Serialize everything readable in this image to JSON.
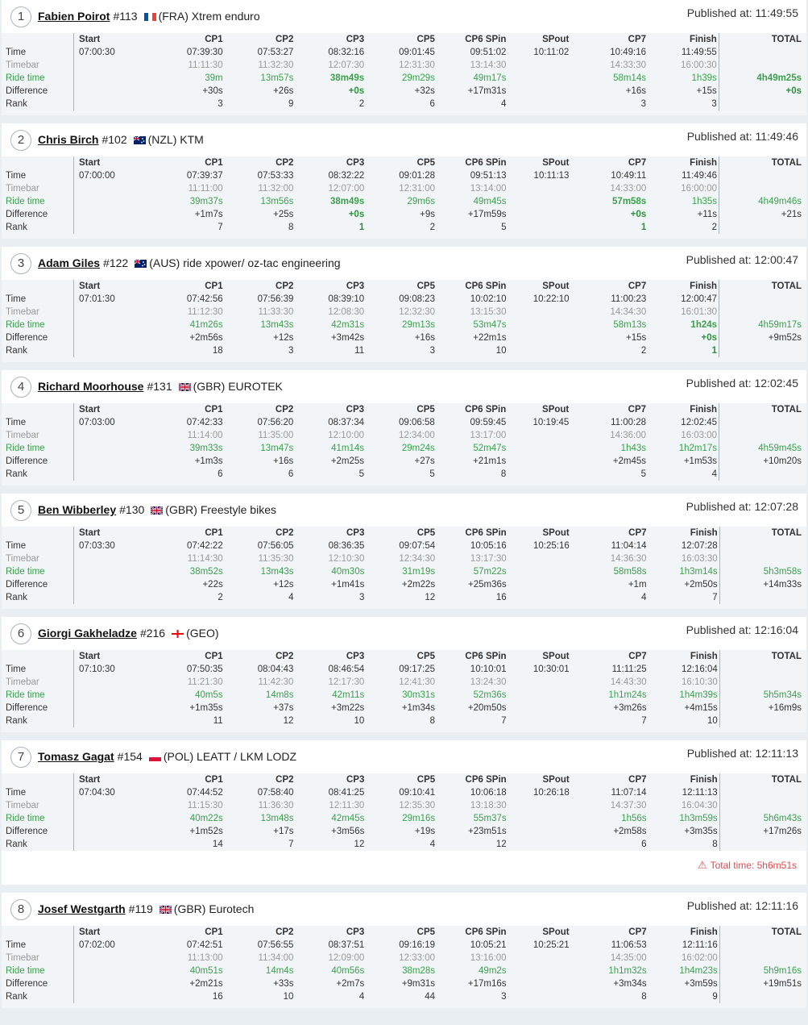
{
  "columns": [
    "Start",
    "CP1",
    "CP2",
    "CP3",
    "CP5",
    "CP6 SPin",
    "SPout",
    "CP7",
    "Finish",
    "TOTAL"
  ],
  "row_labels": [
    "Time",
    "Timebar",
    "Ride time",
    "Difference",
    "Rank"
  ],
  "published_prefix": "Published at: ",
  "riders": [
    {
      "pos": "1",
      "name": "Fabien Poirot",
      "number": "#113",
      "flag": "france-flag",
      "flag_colors": [
        "#0055a4",
        "#ffffff",
        "#ef4135"
      ],
      "country": "(FRA)",
      "team": "Xtrem enduro",
      "published": "11:49:55",
      "time": [
        "07:00:30",
        "07:39:30",
        "07:53:27",
        "08:32:16",
        "09:01:45",
        "09:51:02",
        "10:11:02",
        "10:49:16",
        "11:49:55",
        ""
      ],
      "timebar": [
        "",
        "11:11:30",
        "11:32:30",
        "12:07:30",
        "12:31:30",
        "13:14:30",
        "",
        "14:33:30",
        "16:00:30",
        ""
      ],
      "ride": [
        "",
        "39m",
        "13m57s",
        "38m49s",
        "29m29s",
        "49m17s",
        "",
        "58m14s",
        "1h39s",
        "4h49m25s"
      ],
      "diff": [
        "",
        "+30s",
        "+26s",
        "+0s",
        "+32s",
        "+17m31s",
        "",
        "+16s",
        "+15s",
        "+0s"
      ],
      "rank": [
        "",
        "3",
        "9",
        "2",
        "6",
        "4",
        "",
        "3",
        "3",
        ""
      ],
      "bold_ride": [
        3,
        9
      ],
      "bold_diff": [
        3,
        9
      ],
      "bold_rank": [],
      "warning": ""
    },
    {
      "pos": "2",
      "name": "Chris Birch",
      "number": "#102",
      "flag": "new-zealand-flag",
      "flag_colors": [
        "#012169",
        "#c8102e",
        "#ffffff"
      ],
      "country": "(NZL)",
      "team": "KTM",
      "published": "11:49:46",
      "time": [
        "07:00:00",
        "07:39:37",
        "07:53:33",
        "08:32:22",
        "09:01:28",
        "09:51:13",
        "10:11:13",
        "10:49:11",
        "11:49:46",
        ""
      ],
      "timebar": [
        "",
        "11:11:00",
        "11:32:00",
        "12:07:00",
        "12:31:00",
        "13:14:00",
        "",
        "14:33:00",
        "16:00:00",
        ""
      ],
      "ride": [
        "",
        "39m37s",
        "13m56s",
        "38m49s",
        "29m6s",
        "49m45s",
        "",
        "57m58s",
        "1h35s",
        "4h49m46s"
      ],
      "diff": [
        "",
        "+1m7s",
        "+25s",
        "+0s",
        "+9s",
        "+17m59s",
        "",
        "+0s",
        "+11s",
        "+21s"
      ],
      "rank": [
        "",
        "7",
        "8",
        "1",
        "2",
        "5",
        "",
        "1",
        "2",
        ""
      ],
      "bold_ride": [
        3,
        7
      ],
      "bold_diff": [
        3,
        7
      ],
      "bold_rank": [
        3,
        7
      ],
      "warning": ""
    },
    {
      "pos": "3",
      "name": "Adam Giles",
      "number": "#122",
      "flag": "australia-flag",
      "flag_colors": [
        "#012169",
        "#c8102e",
        "#ffffff"
      ],
      "country": "(AUS)",
      "team": "ride xpower/ oz-tac engineering",
      "published": "12:00:47",
      "time": [
        "07:01:30",
        "07:42:56",
        "07:56:39",
        "08:39:10",
        "09:08:23",
        "10:02:10",
        "10:22:10",
        "11:00:23",
        "12:00:47",
        ""
      ],
      "timebar": [
        "",
        "11:12:30",
        "11:33:30",
        "12:08:30",
        "12:32:30",
        "13:15:30",
        "",
        "14:34:30",
        "16:01:30",
        ""
      ],
      "ride": [
        "",
        "41m26s",
        "13m43s",
        "42m31s",
        "29m13s",
        "53m47s",
        "",
        "58m13s",
        "1h24s",
        "4h59m17s"
      ],
      "diff": [
        "",
        "+2m56s",
        "+12s",
        "+3m42s",
        "+16s",
        "+22m1s",
        "",
        "+15s",
        "+0s",
        "+9m52s"
      ],
      "rank": [
        "",
        "18",
        "3",
        "11",
        "3",
        "10",
        "",
        "2",
        "1",
        ""
      ],
      "bold_ride": [
        8
      ],
      "bold_diff": [
        8
      ],
      "bold_rank": [
        8
      ],
      "warning": ""
    },
    {
      "pos": "4",
      "name": "Richard Moorhouse",
      "number": "#131",
      "flag": "uk-flag",
      "flag_colors": [
        "#012169",
        "#c8102e",
        "#ffffff"
      ],
      "country": "(GBR)",
      "team": "EUROTEK",
      "published": "12:02:45",
      "time": [
        "07:03:00",
        "07:42:33",
        "07:56:20",
        "08:37:34",
        "09:06:58",
        "09:59:45",
        "10:19:45",
        "11:00:28",
        "12:02:45",
        ""
      ],
      "timebar": [
        "",
        "11:14:00",
        "11:35:00",
        "12:10:00",
        "12:34:00",
        "13:17:00",
        "",
        "14:36:00",
        "16:03:00",
        ""
      ],
      "ride": [
        "",
        "39m33s",
        "13m47s",
        "41m14s",
        "29m24s",
        "52m47s",
        "",
        "1h43s",
        "1h2m17s",
        "4h59m45s"
      ],
      "diff": [
        "",
        "+1m3s",
        "+16s",
        "+2m25s",
        "+27s",
        "+21m1s",
        "",
        "+2m45s",
        "+1m53s",
        "+10m20s"
      ],
      "rank": [
        "",
        "6",
        "6",
        "5",
        "5",
        "8",
        "",
        "5",
        "4",
        ""
      ],
      "bold_ride": [],
      "bold_diff": [],
      "bold_rank": [],
      "warning": ""
    },
    {
      "pos": "5",
      "name": "Ben Wibberley",
      "number": "#130",
      "flag": "uk-flag",
      "flag_colors": [
        "#012169",
        "#c8102e",
        "#ffffff"
      ],
      "country": "(GBR)",
      "team": "Freestyle bikes",
      "published": "12:07:28",
      "time": [
        "07:03:30",
        "07:42:22",
        "07:56:05",
        "08:36:35",
        "09:07:54",
        "10:05:16",
        "10:25:16",
        "11:04:14",
        "12:07:28",
        ""
      ],
      "timebar": [
        "",
        "11:14:30",
        "11:35:30",
        "12:10:30",
        "12:34:30",
        "13:17:30",
        "",
        "14:36:30",
        "16:03:30",
        ""
      ],
      "ride": [
        "",
        "38m52s",
        "13m43s",
        "40m30s",
        "31m19s",
        "57m22s",
        "",
        "58m58s",
        "1h3m14s",
        "5h3m58s"
      ],
      "diff": [
        "",
        "+22s",
        "+12s",
        "+1m41s",
        "+2m22s",
        "+25m36s",
        "",
        "+1m",
        "+2m50s",
        "+14m33s"
      ],
      "rank": [
        "",
        "2",
        "4",
        "3",
        "12",
        "16",
        "",
        "4",
        "7",
        ""
      ],
      "bold_ride": [],
      "bold_diff": [],
      "bold_rank": [],
      "warning": ""
    },
    {
      "pos": "6",
      "name": "Giorgi Gakheladze",
      "number": "#216",
      "flag": "georgia-flag",
      "flag_colors": [
        "#ffffff",
        "#ff0000",
        "#ff0000"
      ],
      "country": "(GEO)",
      "team": "",
      "published": "12:16:04",
      "time": [
        "07:10:30",
        "07:50:35",
        "08:04:43",
        "08:46:54",
        "09:17:25",
        "10:10:01",
        "10:30:01",
        "11:11:25",
        "12:16:04",
        ""
      ],
      "timebar": [
        "",
        "11:21:30",
        "11:42:30",
        "12:17:30",
        "12:41:30",
        "13:24:30",
        "",
        "14:43:30",
        "16:10:30",
        ""
      ],
      "ride": [
        "",
        "40m5s",
        "14m8s",
        "42m11s",
        "30m31s",
        "52m36s",
        "",
        "1h1m24s",
        "1h4m39s",
        "5h5m34s"
      ],
      "diff": [
        "",
        "+1m35s",
        "+37s",
        "+3m22s",
        "+1m34s",
        "+20m50s",
        "",
        "+3m26s",
        "+4m15s",
        "+16m9s"
      ],
      "rank": [
        "",
        "11",
        "12",
        "10",
        "8",
        "7",
        "",
        "7",
        "10",
        ""
      ],
      "bold_ride": [],
      "bold_diff": [],
      "bold_rank": [],
      "warning": ""
    },
    {
      "pos": "7",
      "name": "Tomasz Gagat",
      "number": "#154",
      "flag": "poland-flag",
      "flag_colors": [
        "#ffffff",
        "#dc143c",
        "#dc143c"
      ],
      "country": "(POL)",
      "team": "LEATT / LKM LODZ",
      "published": "12:11:13",
      "time": [
        "07:04:30",
        "07:44:52",
        "07:58:40",
        "08:41:25",
        "09:10:41",
        "10:06:18",
        "10:26:18",
        "11:07:14",
        "12:11:13",
        ""
      ],
      "timebar": [
        "",
        "11:15:30",
        "11:36:30",
        "12:11:30",
        "12:35:30",
        "13:18:30",
        "",
        "14:37:30",
        "16:04:30",
        ""
      ],
      "ride": [
        "",
        "40m22s",
        "13m48s",
        "42m45s",
        "29m16s",
        "55m37s",
        "",
        "1h56s",
        "1h3m59s",
        "5h6m43s"
      ],
      "diff": [
        "",
        "+1m52s",
        "+17s",
        "+3m56s",
        "+19s",
        "+23m51s",
        "",
        "+2m58s",
        "+3m35s",
        "+17m26s"
      ],
      "rank": [
        "",
        "14",
        "7",
        "12",
        "4",
        "12",
        "",
        "6",
        "8",
        ""
      ],
      "bold_ride": [],
      "bold_diff": [],
      "bold_rank": [],
      "warning": "Total time: 5h6m51s"
    },
    {
      "pos": "8",
      "name": "Josef Westgarth",
      "number": "#119",
      "flag": "uk-flag",
      "flag_colors": [
        "#012169",
        "#c8102e",
        "#ffffff"
      ],
      "country": "(GBR)",
      "team": "Eurotech",
      "published": "12:11:16",
      "time": [
        "07:02:00",
        "07:42:51",
        "07:56:55",
        "08:37:51",
        "09:16:19",
        "10:05:21",
        "10:25:21",
        "11:06:53",
        "12:11:16",
        ""
      ],
      "timebar": [
        "",
        "11:13:00",
        "11:34:00",
        "12:09:00",
        "12:33:00",
        "13:16:00",
        "",
        "14:35:00",
        "16:02:00",
        ""
      ],
      "ride": [
        "",
        "40m51s",
        "14m4s",
        "40m56s",
        "38m28s",
        "49m2s",
        "",
        "1h1m32s",
        "1h4m23s",
        "5h9m16s"
      ],
      "diff": [
        "",
        "+2m21s",
        "+33s",
        "+2m7s",
        "+9m31s",
        "+17m16s",
        "",
        "+3m34s",
        "+3m59s",
        "+19m51s"
      ],
      "rank": [
        "",
        "16",
        "10",
        "4",
        "44",
        "3",
        "",
        "8",
        "9",
        ""
      ],
      "bold_ride": [],
      "bold_diff": [],
      "bold_rank": [],
      "warning": ""
    }
  ]
}
